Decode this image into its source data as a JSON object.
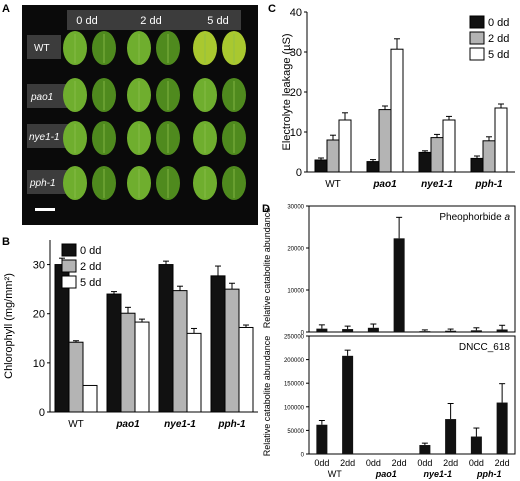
{
  "panels": {
    "A": {
      "letter": "A",
      "columns": [
        "0 dd",
        "2 dd",
        "5 dd"
      ],
      "rows": [
        "WT",
        "pao1",
        "nye1-1",
        "pph-1"
      ]
    }
  },
  "colors": {
    "black": "#111111",
    "gray": "#b4b4b4",
    "white": "#ffffff",
    "photo_bg": "#0a0a0a",
    "leaf": "#6fae2e",
    "leaf_dark": "#4f8a1e",
    "leaf_yellow": "#a9c82f"
  },
  "chart_data": [
    {
      "panel": "B",
      "type": "bar",
      "ylabel": "Chlorophyll (mg/mm²)",
      "categories": [
        "WT",
        "pao1",
        "nye1-1",
        "pph-1"
      ],
      "series": [
        {
          "name": "0 dd",
          "values": [
            30.0,
            24.0,
            30.0,
            27.7
          ],
          "errors": [
            1.3,
            0.5,
            0.7,
            2.0
          ]
        },
        {
          "name": "2 dd",
          "values": [
            14.2,
            20.1,
            24.7,
            25.0
          ],
          "errors": [
            0.3,
            1.2,
            0.9,
            1.2
          ]
        },
        {
          "name": "5 dd",
          "values": [
            5.4,
            18.3,
            16.0,
            17.2
          ],
          "errors": [
            0.0,
            0.6,
            1.0,
            0.5
          ]
        }
      ],
      "ylim": [
        0,
        35
      ],
      "yticks": [
        0,
        10,
        20,
        30
      ],
      "legend": "top-right"
    },
    {
      "panel": "C",
      "type": "bar",
      "ylabel": "Electrolyte leakage (µS)",
      "categories": [
        "WT",
        "pao1",
        "nye1-1",
        "pph-1"
      ],
      "series": [
        {
          "name": "0 dd",
          "values": [
            3.0,
            2.6,
            4.9,
            3.4
          ],
          "errors": [
            0.5,
            0.5,
            0.4,
            0.6
          ]
        },
        {
          "name": "2 dd",
          "values": [
            8.0,
            15.6,
            8.6,
            7.8
          ],
          "errors": [
            1.2,
            0.9,
            0.8,
            1.0
          ]
        },
        {
          "name": "5 dd",
          "values": [
            13.0,
            30.7,
            13.0,
            16.0
          ],
          "errors": [
            1.8,
            2.6,
            0.9,
            1.0
          ]
        }
      ],
      "ylim": [
        0,
        40
      ],
      "yticks": [
        0,
        10,
        20,
        30,
        40
      ],
      "legend": "top-right"
    },
    {
      "panel": "D",
      "type": "bar",
      "annotation": "Pheophorbide a",
      "ylabel": "Relative catabolite abundance",
      "categories": [
        "0dd",
        "2dd",
        "0dd",
        "2dd",
        "0dd",
        "2dd",
        "0dd",
        "2dd"
      ],
      "groups": [
        "WT",
        "pao1",
        "nye1-1",
        "pph-1"
      ],
      "values": [
        800,
        700,
        1000,
        22300,
        200,
        300,
        400,
        600
      ],
      "errors": [
        900,
        700,
        900,
        5000,
        300,
        400,
        600,
        1000
      ],
      "ylim": [
        0,
        30000
      ],
      "yticks": [
        0,
        10000,
        20000,
        30000
      ]
    },
    {
      "panel": "D",
      "type": "bar",
      "annotation": "DNCC_618",
      "ylabel": "Relative catabolite abundance",
      "categories": [
        "0dd",
        "2dd",
        "0dd",
        "2dd",
        "0dd",
        "2dd",
        "0dd",
        "2dd"
      ],
      "groups": [
        "WT",
        "pao1",
        "nye1-1",
        "pph-1"
      ],
      "values": [
        62000,
        208000,
        0,
        0,
        19000,
        74000,
        37000,
        109000
      ],
      "errors": [
        9000,
        12000,
        0,
        0,
        4000,
        33000,
        18000,
        40000
      ],
      "ylim": [
        0,
        250000
      ],
      "yticks": [
        0,
        50000,
        100000,
        150000,
        200000,
        250000
      ]
    }
  ]
}
